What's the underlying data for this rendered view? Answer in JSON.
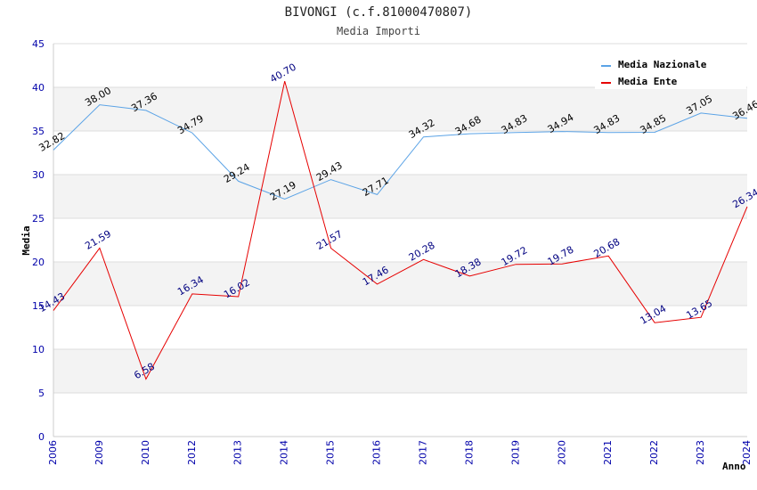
{
  "chart_data": {
    "type": "line",
    "title": "BIVONGI (c.f.81000470807)",
    "subtitle": "Media Importi",
    "xlabel": "Anno",
    "ylabel": "Media",
    "ylim": [
      0,
      45
    ],
    "yticks": [
      "0",
      "5",
      "10",
      "15",
      "20",
      "25",
      "30",
      "35",
      "40",
      "45"
    ],
    "categories": [
      "2006",
      "2009",
      "2010",
      "2012",
      "2013",
      "2014",
      "2015",
      "2016",
      "2017",
      "2018",
      "2019",
      "2020",
      "2021",
      "2022",
      "2023",
      "2024"
    ],
    "legend_position": "top-right",
    "series": [
      {
        "name": "Media Nazionale",
        "color": "#5ba3e6",
        "label_color": "#000000",
        "values": [
          32.82,
          38.0,
          37.36,
          34.79,
          29.24,
          27.19,
          29.43,
          27.71,
          34.32,
          34.68,
          34.83,
          34.94,
          34.83,
          34.85,
          37.05,
          36.46
        ],
        "labels": [
          "32.82",
          "38.00",
          "37.36",
          "34.79",
          "29.24",
          "27.19",
          "29.43",
          "27.71",
          "34.32",
          "34.68",
          "34.83",
          "34.94",
          "34.83",
          "34.85",
          "37.05",
          "36.46"
        ]
      },
      {
        "name": "Media Ente",
        "color": "#e60000",
        "label_color": "#000080",
        "values": [
          14.43,
          21.59,
          6.58,
          16.34,
          16.02,
          40.7,
          21.57,
          17.46,
          20.28,
          18.38,
          19.72,
          19.78,
          20.68,
          13.04,
          13.65,
          26.34
        ],
        "labels": [
          "14.43",
          "21.59",
          "6.58",
          "16.34",
          "16.02",
          "40.70",
          "21.57",
          "17.46",
          "20.28",
          "18.38",
          "19.72",
          "19.78",
          "20.68",
          "13.04",
          "13.65",
          "26.34"
        ]
      }
    ],
    "colors": {
      "band": "#f3f3f3",
      "grid": "#dddddd",
      "tick_text": "#0000aa"
    }
  }
}
